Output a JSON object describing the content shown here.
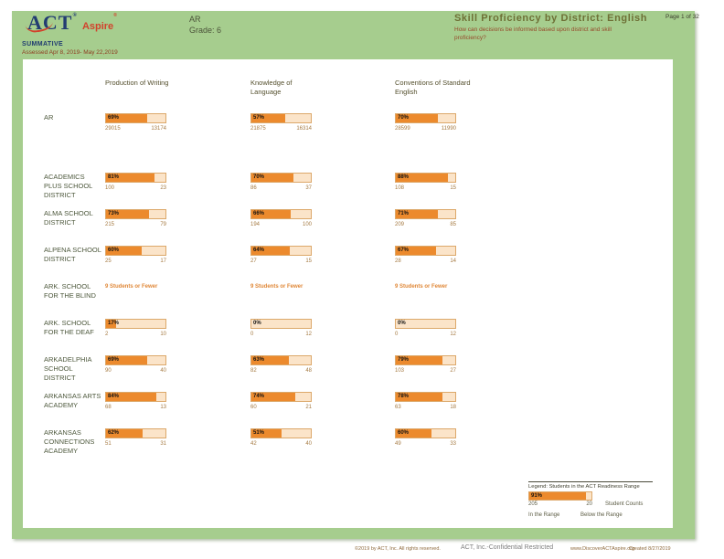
{
  "header": {
    "logo_act": "ACT",
    "logo_aspire": "Aspire",
    "program": "SUMMATIVE",
    "assessed": "Assessed Apr 8, 2019- May 22,2019",
    "region": "AR",
    "grade": "Grade: 6",
    "title": "Skill Proficiency by District: English",
    "subtitle": "How can decisions be informed based upon district and skill proficiency?",
    "page": "Page 1 of 32"
  },
  "columns": [
    {
      "label": "Production of Writing"
    },
    {
      "label": "Knowledge of Language"
    },
    {
      "label": "Conventions of Standard English"
    }
  ],
  "suppressed_note": "9 Students or Fewer",
  "rows": [
    {
      "label": "AR",
      "cells": [
        {
          "pct": 69,
          "pct_label": "69%",
          "in": "29015",
          "below": "13174"
        },
        {
          "pct": 57,
          "pct_label": "57%",
          "in": "21875",
          "below": "16314"
        },
        {
          "pct": 70,
          "pct_label": "70%",
          "in": "28599",
          "below": "11990"
        }
      ]
    },
    {
      "label": "ACADEMICS PLUS SCHOOL DISTRICT",
      "cells": [
        {
          "pct": 81,
          "pct_label": "81%",
          "in": "100",
          "below": "23"
        },
        {
          "pct": 70,
          "pct_label": "70%",
          "in": "86",
          "below": "37"
        },
        {
          "pct": 88,
          "pct_label": "88%",
          "in": "108",
          "below": "15"
        }
      ]
    },
    {
      "label": "ALMA SCHOOL DISTRICT",
      "cells": [
        {
          "pct": 73,
          "pct_label": "73%",
          "in": "215",
          "below": "79"
        },
        {
          "pct": 66,
          "pct_label": "66%",
          "in": "194",
          "below": "100"
        },
        {
          "pct": 71,
          "pct_label": "71%",
          "in": "209",
          "below": "85"
        }
      ]
    },
    {
      "label": "ALPENA SCHOOL DISTRICT",
      "cells": [
        {
          "pct": 60,
          "pct_label": "60%",
          "in": "25",
          "below": "17"
        },
        {
          "pct": 64,
          "pct_label": "64%",
          "in": "27",
          "below": "15"
        },
        {
          "pct": 67,
          "pct_label": "67%",
          "in": "28",
          "below": "14"
        }
      ]
    },
    {
      "label": "ARK. SCHOOL FOR THE BLIND",
      "suppressed": true
    },
    {
      "label": "ARK. SCHOOL FOR THE DEAF",
      "cells": [
        {
          "pct": 17,
          "pct_label": "17%",
          "in": "2",
          "below": "10"
        },
        {
          "pct": 0,
          "pct_label": "0%",
          "in": "0",
          "below": "12"
        },
        {
          "pct": 0,
          "pct_label": "0%",
          "in": "0",
          "below": "12"
        }
      ]
    },
    {
      "label": "ARKADELPHIA SCHOOL DISTRICT",
      "cells": [
        {
          "pct": 69,
          "pct_label": "69%",
          "in": "90",
          "below": "40"
        },
        {
          "pct": 63,
          "pct_label": "63%",
          "in": "82",
          "below": "48"
        },
        {
          "pct": 79,
          "pct_label": "79%",
          "in": "103",
          "below": "27"
        }
      ]
    },
    {
      "label": "ARKANSAS ARTS ACADEMY",
      "cells": [
        {
          "pct": 84,
          "pct_label": "84%",
          "in": "68",
          "below": "13"
        },
        {
          "pct": 74,
          "pct_label": "74%",
          "in": "60",
          "below": "21"
        },
        {
          "pct": 78,
          "pct_label": "78%",
          "in": "63",
          "below": "18"
        }
      ]
    },
    {
      "label": "ARKANSAS CONNECTIONS ACADEMY",
      "cells": [
        {
          "pct": 62,
          "pct_label": "62%",
          "in": "51",
          "below": "31"
        },
        {
          "pct": 51,
          "pct_label": "51%",
          "in": "42",
          "below": "40"
        },
        {
          "pct": 60,
          "pct_label": "60%",
          "in": "49",
          "below": "33"
        }
      ]
    }
  ],
  "legend": {
    "title": "Legend: Students in the ACT Readiness Range",
    "pct": 91,
    "pct_label": "91%",
    "in_count": "205",
    "below_count": "20",
    "counts_label": "Student Counts",
    "in_label": "In the Range",
    "below_label": "Below the Range"
  },
  "footer": {
    "copyright": "©2019 by ACT, Inc. All rights reserved.",
    "confidential": "ACT, Inc.-Confidential Restricted",
    "website": "www.DiscoverACTAspire.org",
    "created": "Created 8/27/2019"
  },
  "colors": {
    "accent_orange": "#ec8a2d",
    "bar_light": "#fbe4c9",
    "page_green": "#a6cd8e",
    "logo_navy": "#223c72",
    "logo_red": "#d2422c"
  }
}
